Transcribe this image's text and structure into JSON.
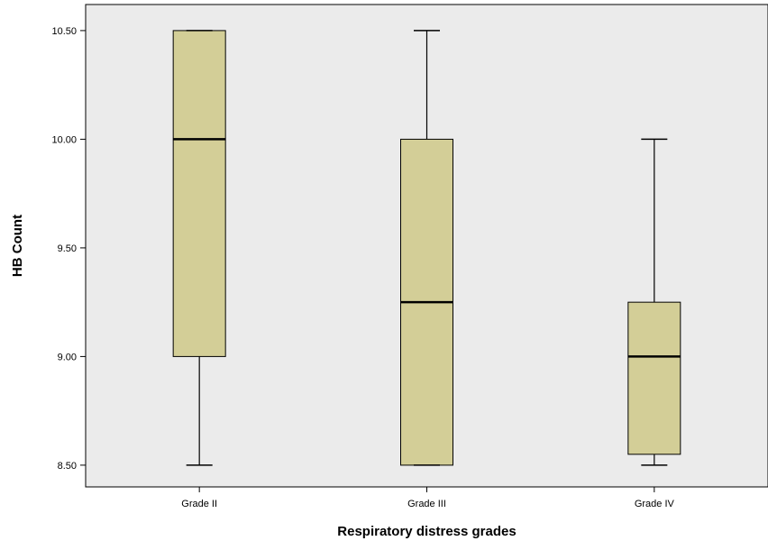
{
  "chart_data": {
    "type": "boxplot",
    "title": "",
    "xlabel": "Respiratory distress grades",
    "ylabel": "HB Count",
    "ylim": [
      8.4,
      10.62
    ],
    "yticks": [
      "8.50",
      "9.00",
      "9.50",
      "10.00",
      "10.50"
    ],
    "categories": [
      "Grade II",
      "Grade III",
      "Grade IV"
    ],
    "boxes": [
      {
        "category": "Grade II",
        "min": 8.5,
        "q1": 9.0,
        "median": 10.0,
        "q3": 10.5,
        "max": 10.5
      },
      {
        "category": "Grade III",
        "min": 8.5,
        "q1": 8.5,
        "median": 9.25,
        "q3": 10.0,
        "max": 10.5
      },
      {
        "category": "Grade IV",
        "min": 8.5,
        "q1": 8.55,
        "median": 9.0,
        "q3": 9.25,
        "max": 10.0
      }
    ],
    "grid": false,
    "legend": "none",
    "colors": {
      "plot_background": "#ebebeb",
      "box_fill": "#d3ce97",
      "line": "#000000"
    }
  }
}
